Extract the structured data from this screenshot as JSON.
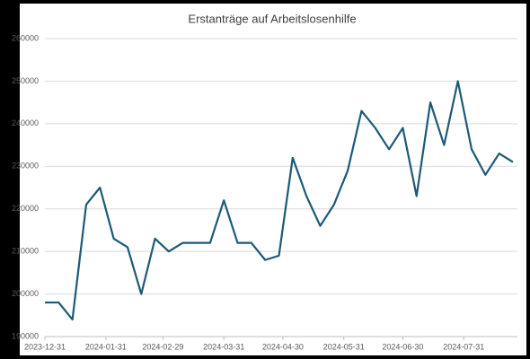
{
  "chart_data": {
    "type": "line",
    "title": "Erstanträge auf Arbeitslosenhilfe",
    "x": [
      "2023-12-31",
      "2024-01-07",
      "2024-01-14",
      "2024-01-21",
      "2024-01-28",
      "2024-02-04",
      "2024-02-11",
      "2024-02-18",
      "2024-02-25",
      "2024-03-03",
      "2024-03-10",
      "2024-03-17",
      "2024-03-24",
      "2024-03-31",
      "2024-04-07",
      "2024-04-14",
      "2024-04-21",
      "2024-04-28",
      "2024-05-05",
      "2024-05-12",
      "2024-05-19",
      "2024-05-26",
      "2024-06-02",
      "2024-06-09",
      "2024-06-16",
      "2024-06-23",
      "2024-06-30",
      "2024-07-07",
      "2024-07-14",
      "2024-07-21",
      "2024-07-28",
      "2024-08-04",
      "2024-08-11",
      "2024-08-18",
      "2024-08-25"
    ],
    "series": [
      {
        "color": "#1d5a78",
        "values": [
          198000,
          198000,
          194000,
          221000,
          225000,
          213000,
          211000,
          200000,
          213000,
          210000,
          212000,
          212000,
          212000,
          222000,
          212000,
          212000,
          208000,
          209000,
          232000,
          223000,
          216000,
          221000,
          229000,
          243000,
          239000,
          234000,
          239000,
          223000,
          245000,
          235000,
          250000,
          234000,
          228000,
          233000,
          231000
        ]
      }
    ],
    "xlim": [
      "2023-12-31",
      "2024-08-25"
    ],
    "xticks": [
      "2023-12-31",
      "2024-01-31",
      "2024-02-29",
      "2024-03-31",
      "2024-04-30",
      "2024-05-31",
      "2024-06-30",
      "2024-07-31"
    ],
    "ylim": [
      190000,
      260000
    ],
    "yticks": [
      190000,
      200000,
      210000,
      220000,
      230000,
      240000,
      250000,
      260000
    ],
    "grid": true
  }
}
